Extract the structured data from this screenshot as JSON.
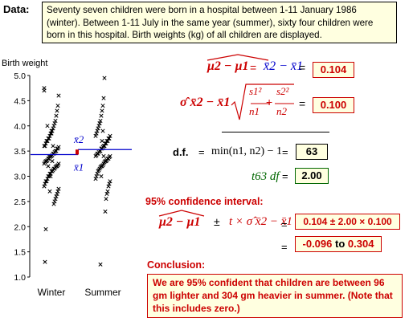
{
  "data_section": {
    "label": "Data:",
    "description": "Seventy seven children were born in a hospital between 1-11 January 1986 (winter). Between 1-11 July in the same year (summer), sixty four children were born in this hospital. Birth weights (kg) of all children are displayed."
  },
  "chart_data": {
    "type": "scatter",
    "ylabel": "Birth weight",
    "ylim": [
      1.0,
      5.0
    ],
    "yticks": [
      "1.0",
      "1.5",
      "2.0",
      "2.5",
      "3.0",
      "3.5",
      "4.0",
      "4.5",
      "5.0"
    ],
    "categories": [
      "Winter",
      "Summer"
    ],
    "group_means": [
      3.43,
      3.53
    ],
    "mean_labels": [
      "x̄1",
      "x̄2"
    ],
    "series": [
      {
        "values": [
          4.75,
          4.6,
          4.4,
          4.3,
          4.2,
          4.1,
          4.05,
          4.0,
          3.95,
          3.9,
          3.85,
          3.85,
          3.8,
          3.75,
          3.75,
          3.7,
          3.7,
          3.65,
          3.6,
          3.6,
          3.58,
          3.55,
          3.55,
          3.5,
          3.5,
          3.48,
          3.45,
          3.45,
          3.42,
          3.4,
          3.4,
          3.38,
          3.35,
          3.35,
          3.32,
          3.3,
          3.3,
          3.28,
          3.25,
          3.25,
          3.22,
          3.2,
          3.2,
          3.18,
          3.15,
          3.15,
          3.12,
          3.1,
          3.1,
          3.05,
          3.05,
          3.0,
          3.0,
          2.95,
          2.9,
          2.9,
          2.85,
          2.8,
          2.75,
          2.7,
          2.65,
          2.6,
          2.55,
          2.5,
          2.45,
          3.6,
          3.3,
          3.9,
          3.0,
          2.7,
          3.4,
          3.2,
          4.0,
          3.7,
          1.95,
          1.3,
          4.7
        ]
      },
      {
        "values": [
          4.95,
          4.55,
          4.4,
          4.3,
          4.2,
          4.1,
          4.05,
          4.0,
          3.95,
          3.9,
          3.85,
          3.8,
          3.8,
          3.75,
          3.75,
          3.7,
          3.7,
          3.65,
          3.65,
          3.6,
          3.6,
          3.58,
          3.55,
          3.55,
          3.5,
          3.5,
          3.48,
          3.45,
          3.45,
          3.42,
          3.4,
          3.4,
          3.38,
          3.35,
          3.35,
          3.32,
          3.3,
          3.3,
          3.28,
          3.25,
          3.22,
          3.2,
          3.2,
          3.18,
          3.15,
          3.12,
          3.1,
          3.05,
          3.0,
          2.95,
          2.9,
          2.85,
          2.8,
          2.7,
          2.65,
          2.55,
          2.3,
          3.6,
          3.4,
          3.9,
          3.7,
          3.0,
          1.25,
          4.05
        ]
      }
    ],
    "colors": {
      "points": "#000000",
      "mean_line": "#0000cc",
      "diff_bar": "#cc0000"
    }
  },
  "estimate": {
    "lhs": "μ2 − μ1",
    "rhs": "x̄2 − x̄1",
    "eq": "=",
    "value": "0.104"
  },
  "stderr": {
    "lhs": "σ̂ x̄2 − x̄1",
    "s1_sq": "s1²",
    "n1": "n1",
    "s2_sq": "s2²",
    "n2": "n2",
    "plus": "+",
    "eq": "=",
    "value": "0.100"
  },
  "df": {
    "label": "d.f.",
    "eq": "=",
    "expr": "min(n1, n2) − 1",
    "expr_eq": "=",
    "value": "63",
    "t_label": "t63 df",
    "t_eq": "=",
    "t_value": "2.00"
  },
  "ci": {
    "heading": "95% confidence interval:",
    "lhs": "μ2 − μ1",
    "pm": "±",
    "rhs": "t × σ̂ x̄2 − x̄1",
    "eq1": "=",
    "calc": "0.104 ± 2.00 × 0.100",
    "eq2": "=",
    "lower": "-0.096",
    "to": "to",
    "upper": "0.304"
  },
  "conclusion": {
    "heading": "Conclusion:",
    "text": "We are 95% confident that children are between 96 gm lighter and 304 gm heavier in summer. (Note that this includes zero.)"
  }
}
